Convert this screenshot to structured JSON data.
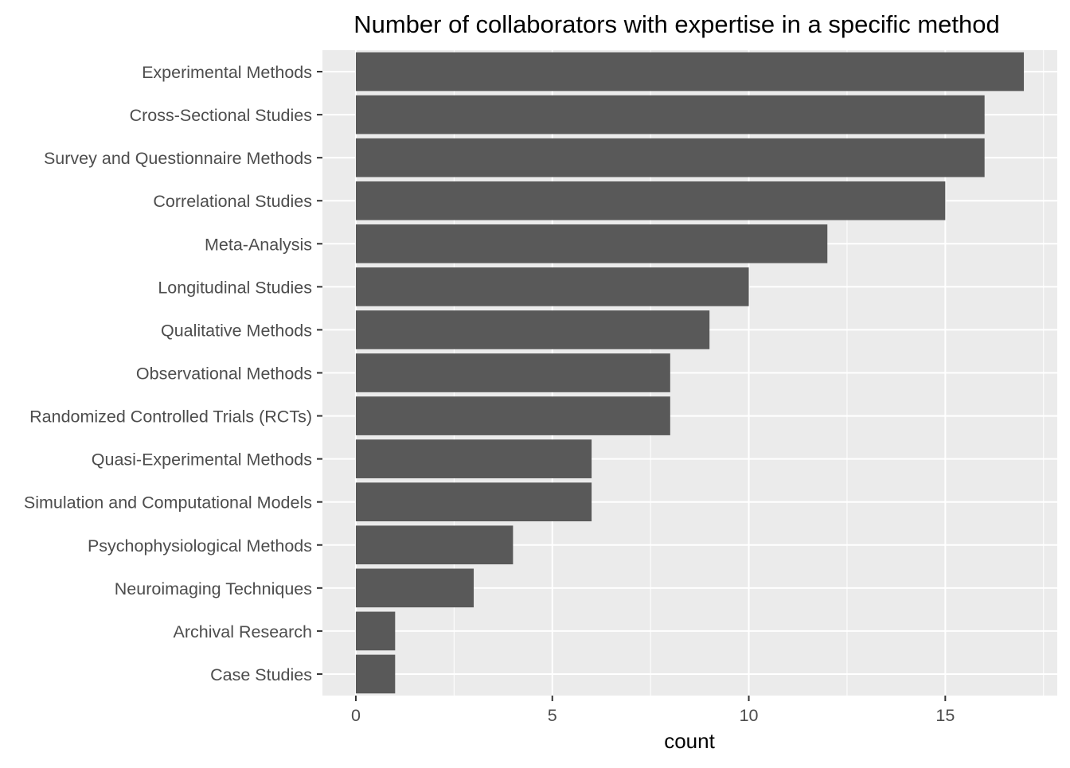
{
  "chart_data": {
    "type": "bar",
    "orientation": "horizontal",
    "title": "Number of collaborators with expertise in a specific method",
    "xlabel": "count",
    "ylabel": "",
    "categories": [
      "Experimental Methods",
      "Cross-Sectional Studies",
      "Survey and Questionnaire Methods",
      "Correlational Studies",
      "Meta-Analysis",
      "Longitudinal Studies",
      "Qualitative Methods",
      "Observational Methods",
      "Randomized Controlled Trials (RCTs)",
      "Quasi-Experimental Methods",
      "Simulation and Computational Models",
      "Psychophysiological Methods",
      "Neuroimaging Techniques",
      "Archival Research",
      "Case Studies"
    ],
    "values": [
      17,
      16,
      16,
      15,
      12,
      10,
      9,
      8,
      8,
      6,
      6,
      4,
      3,
      1,
      1
    ],
    "xlim": [
      -0.85,
      17.85
    ],
    "xticks": [
      0,
      5,
      10,
      15
    ],
    "xtick_labels": [
      "0",
      "5",
      "10",
      "15"
    ],
    "grid": true,
    "legend": "none",
    "colors": {
      "bar": "#595959",
      "panel": "#ebebeb",
      "grid": "#ffffff",
      "tick_text": "#4d4d4d",
      "title_text": "#000000"
    }
  }
}
